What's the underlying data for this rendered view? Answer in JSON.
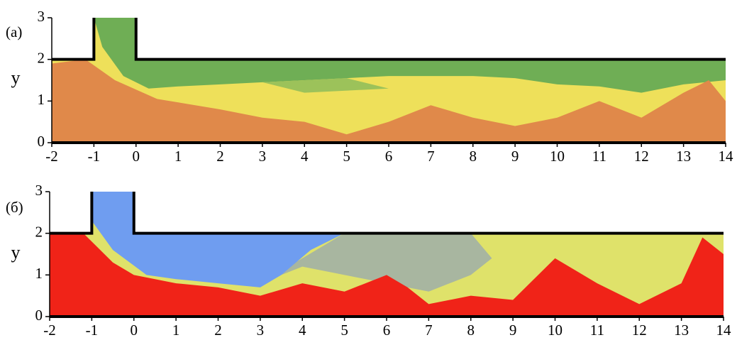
{
  "panels": [
    {
      "label": "(а)",
      "ylabel": "y",
      "xlim": [
        -2,
        14
      ],
      "ylim": [
        0,
        3
      ],
      "xticks": [
        -2,
        -1,
        0,
        1,
        2,
        3,
        4,
        5,
        6,
        7,
        8,
        9,
        10,
        11,
        12,
        13,
        14
      ],
      "yticks": [
        0,
        1,
        2,
        3
      ]
    },
    {
      "label": "(б)",
      "ylabel": "y",
      "xlim": [
        -2,
        14
      ],
      "ylim": [
        0,
        3
      ],
      "xticks": [
        -2,
        -1,
        0,
        1,
        2,
        3,
        4,
        5,
        6,
        7,
        8,
        9,
        10,
        11,
        12,
        13,
        14
      ],
      "yticks": [
        0,
        1,
        2,
        3
      ]
    }
  ]
}
